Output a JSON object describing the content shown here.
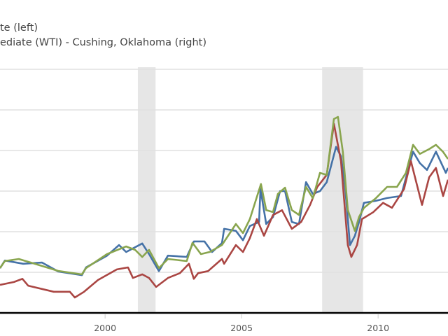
{
  "chart_data": {
    "type": "line",
    "legend": [
      {
        "label": "te (left)",
        "axis": "left"
      },
      {
        "label": "ediate (WTI) - Cushing, Oklahoma (right)",
        "axis": "right"
      }
    ],
    "legend_placement": "top-left",
    "x_ticks": [
      "2000",
      "2005",
      "2010"
    ],
    "xlim": [
      1996.15,
      2012.56
    ],
    "grid": true,
    "recessions": [
      [
        2001.2,
        2001.85
      ],
      [
        2007.95,
        2009.45
      ]
    ],
    "colors": {
      "blue": "#4572a7",
      "red": "#aa4643",
      "green": "#89a54e",
      "recession": "#e6e6e6"
    },
    "series": [
      {
        "color": "blue",
        "axis": "left",
        "points": [
          [
            1996.15,
            1.1
          ],
          [
            1996.33,
            1.29
          ],
          [
            1997.0,
            1.21
          ],
          [
            1997.69,
            1.24
          ],
          [
            1998.28,
            1.02
          ],
          [
            1999.15,
            0.93
          ],
          [
            1999.3,
            1.12
          ],
          [
            2000.07,
            1.41
          ],
          [
            2000.51,
            1.67
          ],
          [
            2000.77,
            1.5
          ],
          [
            2001.36,
            1.71
          ],
          [
            2001.61,
            1.45
          ],
          [
            2001.97,
            1.03
          ],
          [
            2002.3,
            1.41
          ],
          [
            2002.99,
            1.38
          ],
          [
            2003.25,
            1.76
          ],
          [
            2003.64,
            1.76
          ],
          [
            2003.92,
            1.5
          ],
          [
            2004.28,
            1.72
          ],
          [
            2004.36,
            2.07
          ],
          [
            2004.79,
            2.02
          ],
          [
            2005.05,
            1.79
          ],
          [
            2005.3,
            2.14
          ],
          [
            2005.64,
            2.24
          ],
          [
            2005.69,
            3.05
          ],
          [
            2005.9,
            2.19
          ],
          [
            2006.15,
            2.36
          ],
          [
            2006.41,
            3.0
          ],
          [
            2006.59,
            3.0
          ],
          [
            2006.84,
            2.24
          ],
          [
            2007.1,
            2.19
          ],
          [
            2007.36,
            3.22
          ],
          [
            2007.61,
            2.93
          ],
          [
            2007.87,
            3.0
          ],
          [
            2008.12,
            3.22
          ],
          [
            2008.46,
            4.09
          ],
          [
            2008.64,
            3.86
          ],
          [
            2008.79,
            3.1
          ],
          [
            2008.97,
            1.67
          ],
          [
            2009.15,
            1.9
          ],
          [
            2009.3,
            2.24
          ],
          [
            2009.48,
            2.71
          ],
          [
            2009.92,
            2.76
          ],
          [
            2010.33,
            2.83
          ],
          [
            2010.84,
            2.88
          ],
          [
            2011.28,
            3.97
          ],
          [
            2011.53,
            3.69
          ],
          [
            2011.79,
            3.52
          ],
          [
            2012.12,
            3.97
          ],
          [
            2012.48,
            3.45
          ],
          [
            2012.56,
            3.57
          ]
        ]
      },
      {
        "color": "red",
        "axis": "left",
        "points": [
          [
            1996.15,
            0.69
          ],
          [
            1996.66,
            0.76
          ],
          [
            1996.97,
            0.84
          ],
          [
            1997.18,
            0.67
          ],
          [
            1998.12,
            0.52
          ],
          [
            1998.71,
            0.52
          ],
          [
            1998.89,
            0.38
          ],
          [
            1999.23,
            0.52
          ],
          [
            1999.74,
            0.81
          ],
          [
            2000.43,
            1.07
          ],
          [
            2000.84,
            1.12
          ],
          [
            2001.02,
            0.86
          ],
          [
            2001.36,
            0.95
          ],
          [
            2001.61,
            0.86
          ],
          [
            2001.87,
            0.64
          ],
          [
            2002.3,
            0.86
          ],
          [
            2002.74,
            0.98
          ],
          [
            2003.07,
            1.21
          ],
          [
            2003.25,
            0.84
          ],
          [
            2003.41,
            0.98
          ],
          [
            2003.77,
            1.03
          ],
          [
            2004.28,
            1.33
          ],
          [
            2004.36,
            1.21
          ],
          [
            2004.79,
            1.67
          ],
          [
            2005.05,
            1.5
          ],
          [
            2005.3,
            1.84
          ],
          [
            2005.56,
            2.31
          ],
          [
            2005.82,
            1.9
          ],
          [
            2006.15,
            2.41
          ],
          [
            2006.48,
            2.53
          ],
          [
            2006.84,
            2.07
          ],
          [
            2007.18,
            2.24
          ],
          [
            2007.51,
            2.66
          ],
          [
            2007.77,
            3.1
          ],
          [
            2008.12,
            3.4
          ],
          [
            2008.38,
            4.66
          ],
          [
            2008.64,
            3.74
          ],
          [
            2008.89,
            1.67
          ],
          [
            2009.02,
            1.38
          ],
          [
            2009.23,
            1.67
          ],
          [
            2009.41,
            2.31
          ],
          [
            2009.82,
            2.48
          ],
          [
            2010.18,
            2.71
          ],
          [
            2010.51,
            2.59
          ],
          [
            2010.95,
            3.05
          ],
          [
            2011.2,
            3.74
          ],
          [
            2011.61,
            2.66
          ],
          [
            2011.87,
            3.34
          ],
          [
            2012.12,
            3.57
          ],
          [
            2012.38,
            2.88
          ],
          [
            2012.56,
            3.28
          ]
        ]
      },
      {
        "color": "green",
        "axis": "right",
        "points": [
          [
            1996.15,
            16.4
          ],
          [
            1996.33,
            21.9
          ],
          [
            1996.84,
            23.5
          ],
          [
            1997.43,
            19.7
          ],
          [
            1998.28,
            14.2
          ],
          [
            1999.15,
            11.5
          ],
          [
            1999.3,
            16.4
          ],
          [
            2000.07,
            27.3
          ],
          [
            2000.77,
            33.3
          ],
          [
            2001.1,
            30.6
          ],
          [
            2001.36,
            25.1
          ],
          [
            2001.61,
            30.6
          ],
          [
            2001.97,
            16.4
          ],
          [
            2002.3,
            23.5
          ],
          [
            2002.99,
            21.9
          ],
          [
            2003.2,
            36.1
          ],
          [
            2003.51,
            27.3
          ],
          [
            2003.84,
            29.0
          ],
          [
            2004.28,
            34.4
          ],
          [
            2004.79,
            50.8
          ],
          [
            2005.05,
            43.7
          ],
          [
            2005.3,
            54.6
          ],
          [
            2005.71,
            82.0
          ],
          [
            2005.9,
            61.7
          ],
          [
            2006.15,
            60.1
          ],
          [
            2006.33,
            74.3
          ],
          [
            2006.59,
            79.2
          ],
          [
            2006.84,
            61.7
          ],
          [
            2007.1,
            57.9
          ],
          [
            2007.36,
            79.8
          ],
          [
            2007.61,
            71.0
          ],
          [
            2007.87,
            90.7
          ],
          [
            2008.12,
            89.1
          ],
          [
            2008.38,
            132.8
          ],
          [
            2008.53,
            134.4
          ],
          [
            2008.71,
            107.1
          ],
          [
            2008.89,
            61.7
          ],
          [
            2009.15,
            45.4
          ],
          [
            2009.3,
            56.3
          ],
          [
            2009.48,
            63.4
          ],
          [
            2009.92,
            71.0
          ],
          [
            2010.33,
            79.8
          ],
          [
            2010.69,
            79.8
          ],
          [
            2011.02,
            90.7
          ],
          [
            2011.28,
            112.6
          ],
          [
            2011.53,
            105.5
          ],
          [
            2011.87,
            109.3
          ],
          [
            2012.12,
            112.6
          ],
          [
            2012.38,
            107.1
          ],
          [
            2012.56,
            101.6
          ]
        ]
      }
    ]
  }
}
